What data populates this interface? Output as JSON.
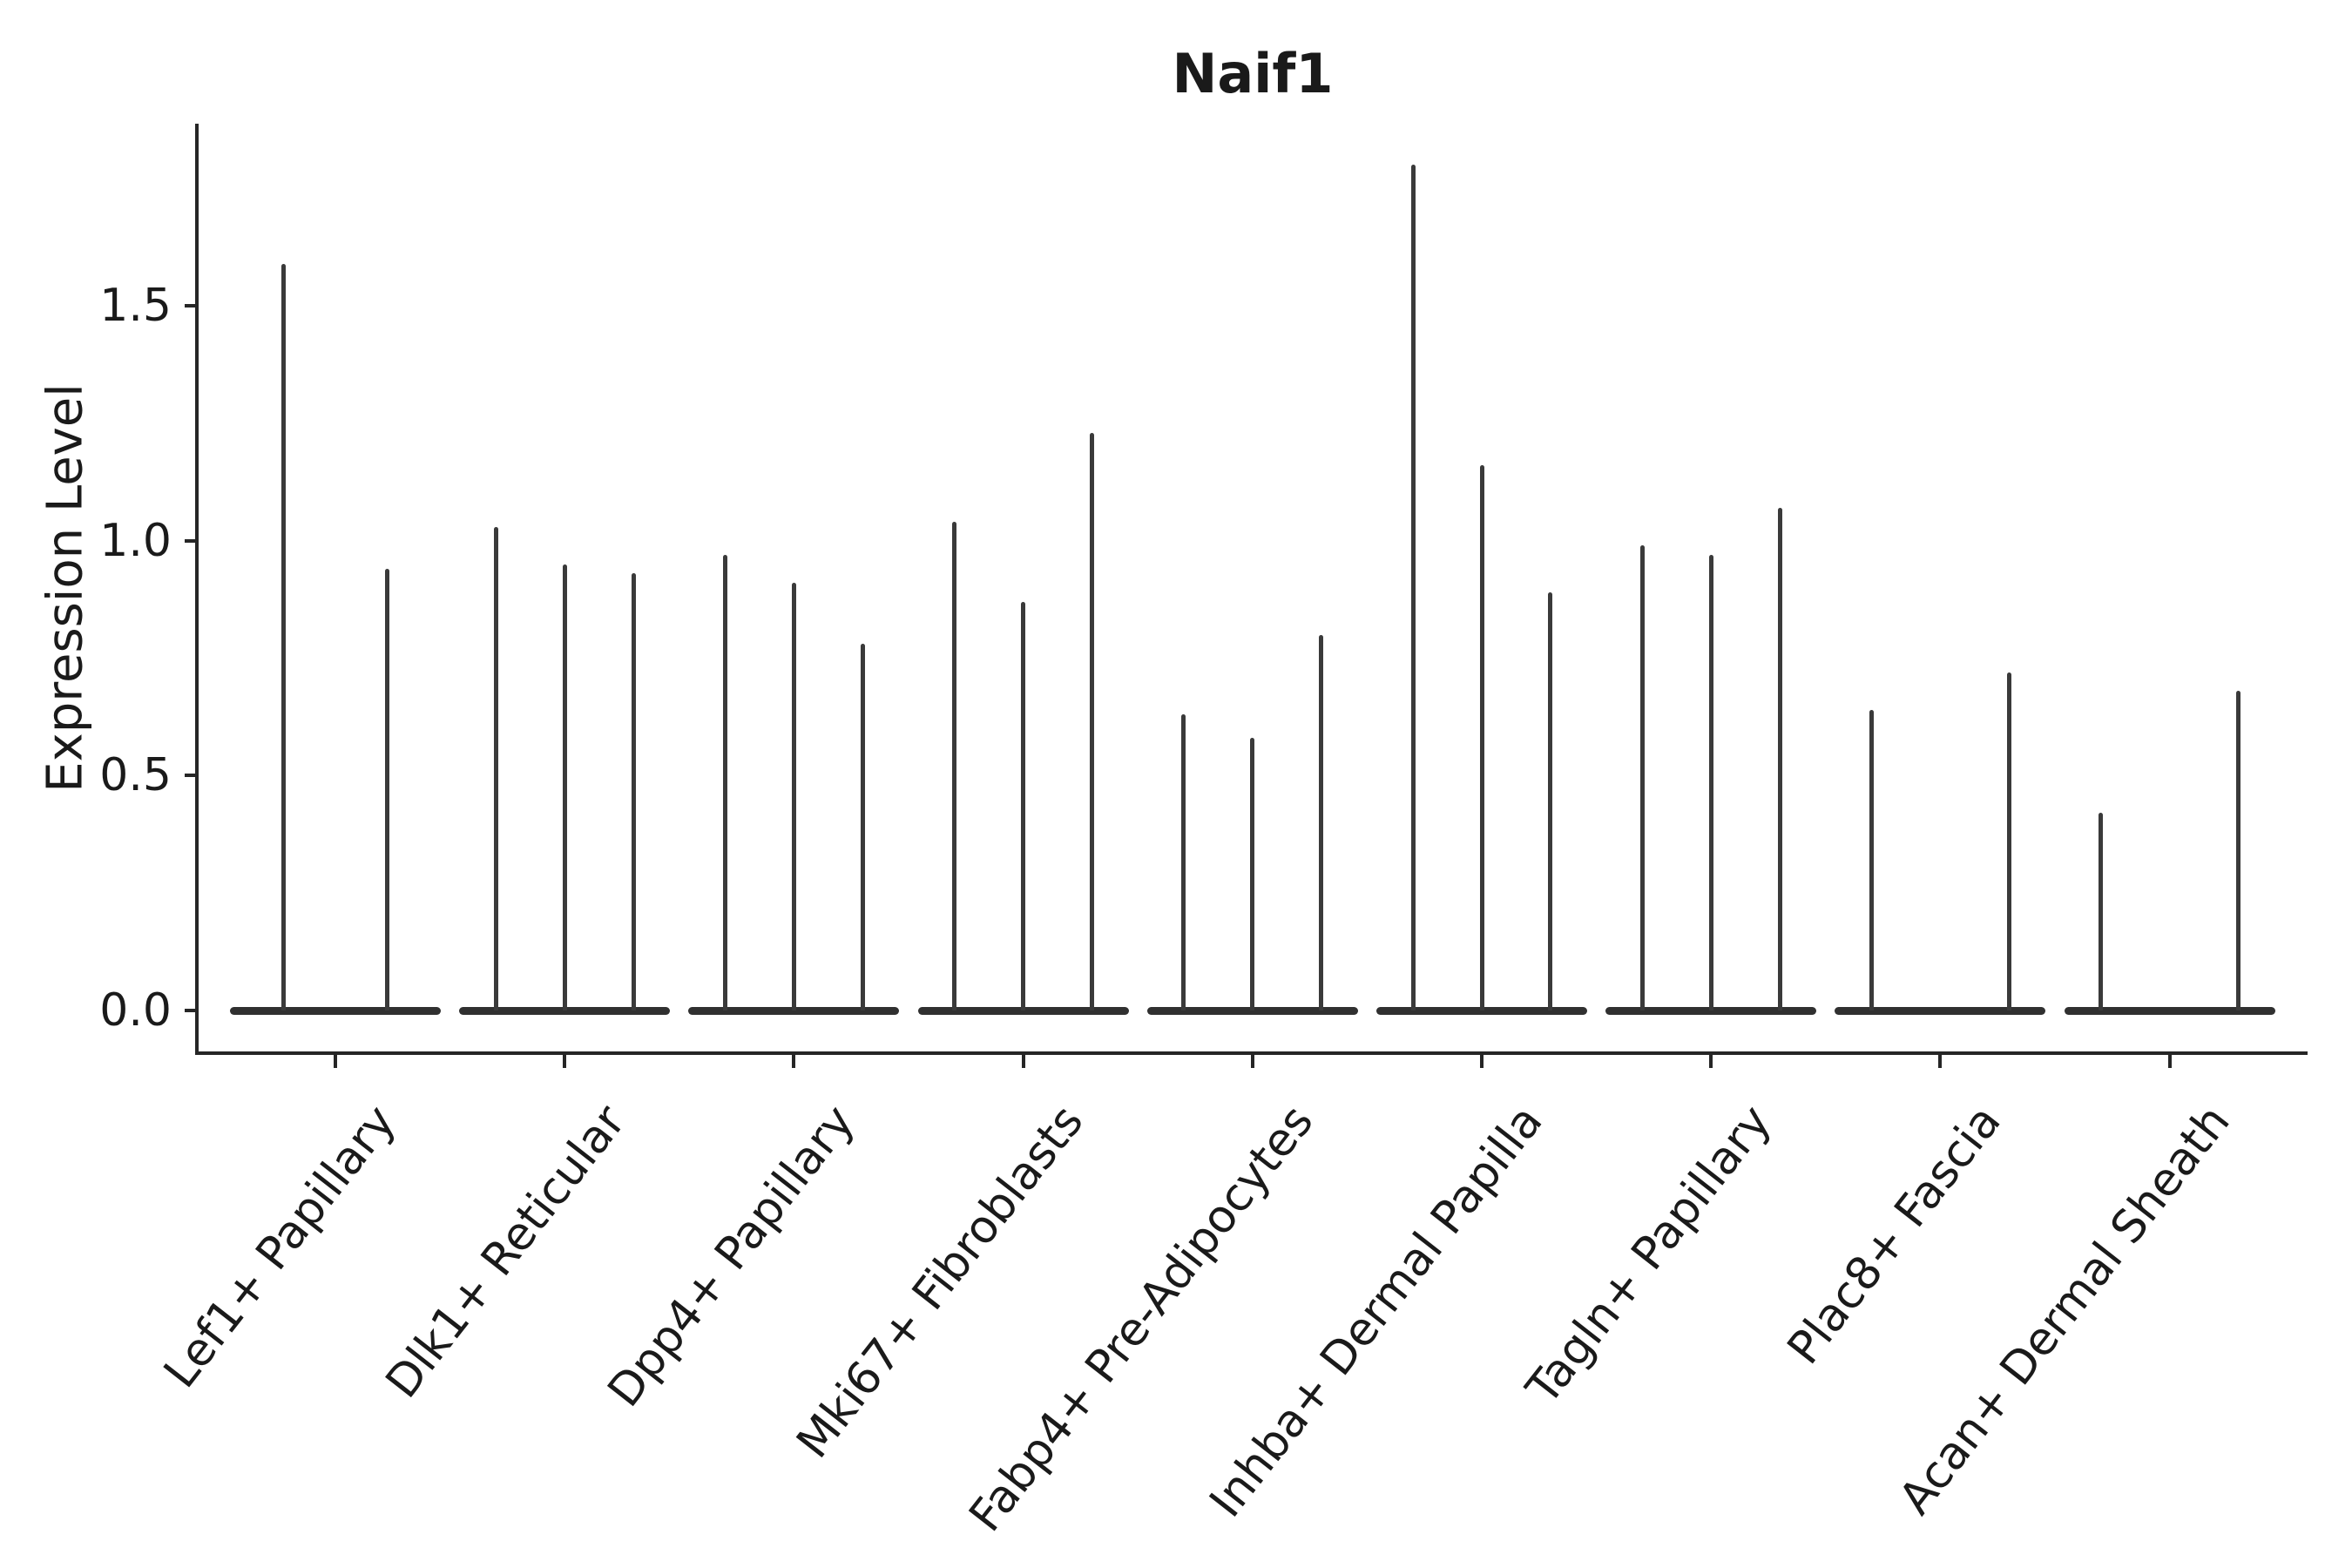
{
  "chart_data": {
    "type": "violin",
    "title": "Naif1",
    "ylabel": "Expression Level",
    "xlabel": "",
    "yticks": [
      0.0,
      0.5,
      1.0,
      1.5
    ],
    "ylim": [
      -0.09,
      1.89
    ],
    "grid": false,
    "legend": "none",
    "style": "thin spike violins (sparse expression), flat violin bodies at zero, grouped/dodged per cluster",
    "line_color": "#3a3a3a",
    "axis_color": "#262626",
    "categories": [
      "Lef1+ Papillary",
      "Dlk1+ Reticular",
      "Dpp4+ Papillary",
      "Mki67+ Fibroblasts",
      "Fabp4+ Pre-Adipocytes",
      "Inhba+ Dermal Papilla",
      "Tagln+ Papillary",
      "Plac8+ Fascia",
      "Acan+ Dermal Sheath"
    ],
    "groups": [
      {
        "label": "Lef1+ Papillary",
        "violins": [
          {
            "offset": -0.225,
            "max": 1.59
          },
          {
            "offset": 0.225,
            "max": 0.94
          }
        ]
      },
      {
        "label": "Dlk1+ Reticular",
        "violins": [
          {
            "offset": -0.3,
            "max": 1.03
          },
          {
            "offset": 0.0,
            "max": 0.95
          },
          {
            "offset": 0.3,
            "max": 0.93
          }
        ]
      },
      {
        "label": "Dpp4+ Papillary",
        "violins": [
          {
            "offset": -0.3,
            "max": 0.97
          },
          {
            "offset": 0.0,
            "max": 0.91
          },
          {
            "offset": 0.3,
            "max": 0.78
          }
        ]
      },
      {
        "label": "Mki67+ Fibroblasts",
        "violins": [
          {
            "offset": -0.3,
            "max": 1.04
          },
          {
            "offset": 0.0,
            "max": 0.87
          },
          {
            "offset": 0.3,
            "max": 1.23
          }
        ]
      },
      {
        "label": "Fabp4+ Pre-Adipocytes",
        "violins": [
          {
            "offset": -0.3,
            "max": 0.63
          },
          {
            "offset": 0.0,
            "max": 0.58
          },
          {
            "offset": 0.3,
            "max": 0.8
          }
        ]
      },
      {
        "label": "Inhba+ Dermal Papilla",
        "violins": [
          {
            "offset": -0.3,
            "max": 1.8
          },
          {
            "offset": 0.0,
            "max": 1.16
          },
          {
            "offset": 0.3,
            "max": 0.89
          }
        ]
      },
      {
        "label": "Tagln+ Papillary",
        "violins": [
          {
            "offset": -0.3,
            "max": 0.99
          },
          {
            "offset": 0.0,
            "max": 0.97
          },
          {
            "offset": 0.3,
            "max": 1.07
          }
        ]
      },
      {
        "label": "Plac8+ Fascia",
        "violins": [
          {
            "offset": -0.3,
            "max": 0.64
          },
          {
            "offset": 0.3,
            "max": 0.72
          }
        ]
      },
      {
        "label": "Acan+ Dermal Sheath",
        "violins": [
          {
            "offset": -0.3,
            "max": 0.42
          },
          {
            "offset": 0.3,
            "max": 0.68
          }
        ]
      }
    ]
  }
}
